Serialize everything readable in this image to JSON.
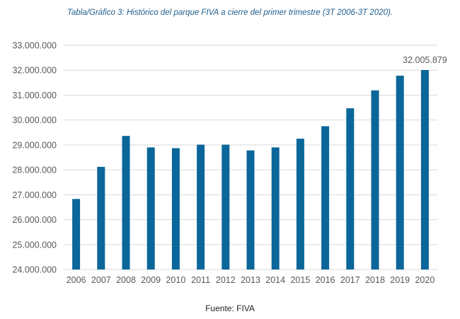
{
  "title": "Tabla/Gráfico 3: Histórico del parque FIVA a cierre del primer trimestre (3T 2006-3T 2020).",
  "source": "Fuente: FIVA",
  "colors": {
    "bar": "#0b6699",
    "grid": "#d9d9d9",
    "title": "#1f5d8c"
  },
  "chart_data": {
    "type": "bar",
    "title": "Tabla/Gráfico 3: Histórico del parque FIVA a cierre del primer trimestre (3T 2006-3T 2020).",
    "categories": [
      "2006",
      "2007",
      "2008",
      "2009",
      "2010",
      "2011",
      "2012",
      "2013",
      "2014",
      "2015",
      "2016",
      "2017",
      "2018",
      "2019",
      "2020"
    ],
    "values": [
      26830000,
      28120000,
      29360000,
      28900000,
      28870000,
      29010000,
      29010000,
      28780000,
      28900000,
      29250000,
      29750000,
      30470000,
      31190000,
      31780000,
      32005879
    ],
    "ylim": [
      24000000,
      33000000
    ],
    "yticks": [
      "24.000.000",
      "25.000.000",
      "26.000.000",
      "27.000.000",
      "28.000.000",
      "29.000.000",
      "30.000.000",
      "31.000.000",
      "32.000.000",
      "33.000.000"
    ],
    "data_labels": [
      {
        "category": "2020",
        "text": "32.005.879"
      }
    ],
    "grid": true,
    "legend": "none"
  }
}
